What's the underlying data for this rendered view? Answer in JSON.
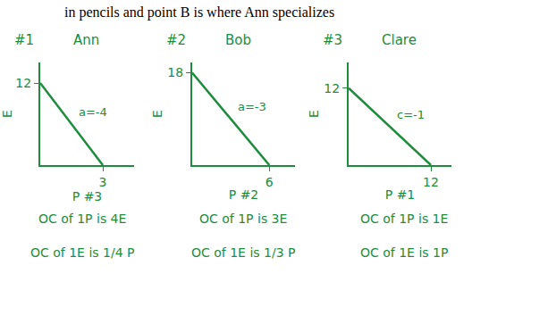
{
  "header": "in pencils and point B is where Ann specializes",
  "chart_data": [
    {
      "type": "line",
      "title": "Ann",
      "subtitle": "#1",
      "x": [
        0,
        3
      ],
      "values": [
        12,
        0
      ],
      "xlim": [
        0,
        4.5
      ],
      "ylim": [
        0,
        15
      ],
      "xticks": [
        3
      ],
      "yticks": [
        12
      ],
      "x_label": "P #3",
      "y_label": "E",
      "color": "#1e8c3c",
      "grid": false,
      "annotations": [
        "a=-4"
      ],
      "notes": [
        "OC of 1P is 4E",
        "OC of 1E is 1/4 P"
      ]
    },
    {
      "type": "line",
      "title": "Bob",
      "subtitle": "#2",
      "x": [
        0,
        6
      ],
      "values": [
        18,
        0
      ],
      "xlim": [
        0,
        8
      ],
      "ylim": [
        0,
        20
      ],
      "xticks": [
        6
      ],
      "yticks": [
        18
      ],
      "x_label": "P #2",
      "y_label": "E",
      "color": "#1e8c3c",
      "grid": false,
      "annotations": [
        "a=-3"
      ],
      "notes": [
        "OC of 1P is 3E",
        "OC of 1E is 1/3 P"
      ]
    },
    {
      "type": "line",
      "title": "Clare",
      "subtitle": "#3",
      "x": [
        0,
        12
      ],
      "values": [
        12,
        0
      ],
      "xlim": [
        0,
        15
      ],
      "ylim": [
        0,
        16
      ],
      "xticks": [
        12
      ],
      "yticks": [
        12
      ],
      "x_label": "P #1",
      "y_label": "E",
      "color": "#1e8c3c",
      "grid": false,
      "annotations": [
        "c=-1"
      ],
      "notes": [
        "OC of 1P is 1E",
        "OC of 1E is 1P"
      ]
    }
  ]
}
